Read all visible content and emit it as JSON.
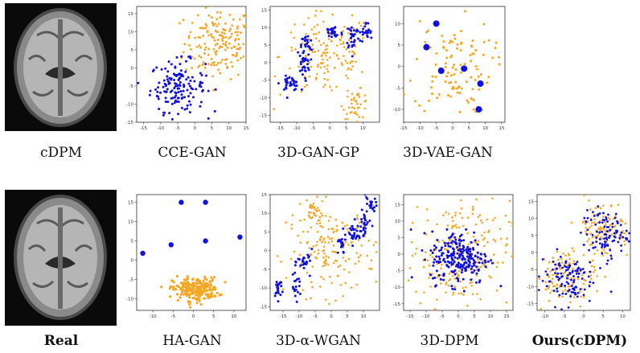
{
  "figure": {
    "captions": {
      "top": [
        "cDPM",
        "CCE-GAN",
        "3D-GAN-GP",
        "3D-VAE-GAN"
      ],
      "bottom": [
        "Real",
        "HA-GAN",
        "3D-α-WGAN",
        "3D-DPM",
        "Ours(cDPM)"
      ]
    },
    "colors": {
      "real": "#f5a623",
      "generated": "#1010e0"
    },
    "images": {
      "top_brain": "axial MRI brain slice",
      "bottom_brain": "axial MRI brain slice"
    }
  },
  "chart_data": [
    {
      "type": "scatter",
      "name": "CCE-GAN",
      "xlim": [
        -17,
        15
      ],
      "ylim": [
        -15,
        17
      ],
      "xticks": [
        -15,
        -10,
        -5,
        0,
        5,
        10,
        15
      ],
      "yticks": [
        -15,
        -10,
        -5,
        0,
        5,
        10,
        15
      ],
      "clusters": [
        {
          "color": "orange",
          "cx": 7,
          "cy": 7,
          "sx": 5,
          "sy": 5,
          "n": 170,
          "r": 1.4
        },
        {
          "color": "blue",
          "cx": -5,
          "cy": -5,
          "sx": 4,
          "sy": 3.5,
          "n": 150,
          "r": 1.5
        }
      ]
    },
    {
      "type": "scatter",
      "name": "3D-GAN-GP",
      "xlim": [
        -18,
        15
      ],
      "ylim": [
        -17,
        16
      ],
      "xticks": [
        -15,
        -10,
        -5,
        0,
        5,
        10
      ],
      "yticks": [
        -15,
        -10,
        -5,
        0,
        5,
        10,
        15
      ],
      "clusters": [
        {
          "color": "orange",
          "cx": -1,
          "cy": 2,
          "sx": 7,
          "sy": 6,
          "n": 160,
          "r": 1.3
        },
        {
          "color": "orange",
          "cx": 8,
          "cy": -12,
          "sx": 2,
          "sy": 2,
          "n": 40,
          "r": 1.3
        },
        {
          "color": "blue",
          "cx": -12,
          "cy": -6,
          "sx": 1.5,
          "sy": 1,
          "n": 35,
          "r": 1.5
        },
        {
          "color": "blue",
          "cx": -8,
          "cy": 0,
          "sx": 1,
          "sy": 2,
          "n": 30,
          "r": 1.5
        },
        {
          "color": "blue",
          "cx": -7,
          "cy": 5,
          "sx": 0.8,
          "sy": 1.5,
          "n": 20,
          "r": 1.5
        },
        {
          "color": "blue",
          "cx": 1,
          "cy": 8.5,
          "sx": 1.5,
          "sy": 1.2,
          "n": 30,
          "r": 1.5
        },
        {
          "color": "blue",
          "cx": 7,
          "cy": 7.5,
          "sx": 1,
          "sy": 2,
          "n": 30,
          "r": 1.5
        },
        {
          "color": "blue",
          "cx": 11,
          "cy": 8.5,
          "sx": 1,
          "sy": 1.5,
          "n": 25,
          "r": 1.5
        }
      ]
    },
    {
      "type": "scatter",
      "name": "3D-VAE-GAN",
      "xlim": [
        -15,
        16
      ],
      "ylim": [
        -13,
        14
      ],
      "xticks": [
        -15,
        -10,
        -5,
        0,
        5,
        10,
        15
      ],
      "yticks": [
        -10,
        -5,
        0,
        5,
        10
      ],
      "clusters": [
        {
          "color": "orange",
          "cx": 0,
          "cy": 0,
          "sx": 6,
          "sy": 5.5,
          "n": 110,
          "r": 1.5
        }
      ],
      "points_blue": [
        [
          -5,
          10
        ],
        [
          -8,
          4.5
        ],
        [
          -3.5,
          -1
        ],
        [
          3.5,
          -0.5
        ],
        [
          8.5,
          -4
        ],
        [
          8,
          -10
        ]
      ],
      "blue_r": 4
    },
    {
      "type": "scatter",
      "name": "HA-GAN",
      "xlim": [
        -14,
        13
      ],
      "ylim": [
        -13,
        17
      ],
      "xticks": [
        -10,
        -5,
        0,
        5,
        10
      ],
      "yticks": [
        -10,
        -5,
        0,
        5,
        10,
        15
      ],
      "clusters": [
        {
          "color": "orange",
          "cx": 0.5,
          "cy": -7.5,
          "sx": 2.8,
          "sy": 1.5,
          "n": 230,
          "r": 1.6
        }
      ],
      "points_blue": [
        [
          -3,
          15
        ],
        [
          3,
          15
        ],
        [
          -5.5,
          4
        ],
        [
          3,
          5
        ],
        [
          11.5,
          6
        ],
        [
          -12.5,
          1.8
        ]
      ],
      "blue_r": 3.2
    },
    {
      "type": "scatter",
      "name": "3D-α-WGAN",
      "xlim": [
        -19,
        15
      ],
      "ylim": [
        -16,
        15
      ],
      "xticks": [
        -15,
        -10,
        -5,
        0,
        5,
        10
      ],
      "yticks": [
        -15,
        -10,
        -5,
        0,
        5,
        10,
        15
      ],
      "clusters": [
        {
          "color": "orange",
          "cx": 0,
          "cy": 0,
          "sx": 7,
          "sy": 6,
          "n": 170,
          "r": 1.3
        },
        {
          "color": "orange",
          "cx": -5.5,
          "cy": 10.5,
          "sx": 1,
          "sy": 1.5,
          "n": 25,
          "r": 1.3
        },
        {
          "color": "blue",
          "cx": -16.5,
          "cy": -10,
          "sx": 0.8,
          "sy": 1.5,
          "n": 20,
          "r": 1.5
        },
        {
          "color": "blue",
          "cx": -11,
          "cy": -10,
          "sx": 0.8,
          "sy": 1.5,
          "n": 20,
          "r": 1.5
        },
        {
          "color": "blue",
          "cx": -8,
          "cy": -3,
          "sx": 1.2,
          "sy": 1.5,
          "n": 25,
          "r": 1.5
        },
        {
          "color": "blue",
          "cx": 3,
          "cy": 1.5,
          "sx": 0.8,
          "sy": 1.5,
          "n": 20,
          "r": 1.5
        },
        {
          "color": "blue",
          "cx": 7,
          "cy": 4.5,
          "sx": 1,
          "sy": 1.5,
          "n": 25,
          "r": 1.5
        },
        {
          "color": "blue",
          "cx": 10.5,
          "cy": 7,
          "sx": 1,
          "sy": 2,
          "n": 25,
          "r": 1.5
        },
        {
          "color": "blue",
          "cx": 12,
          "cy": 12,
          "sx": 1,
          "sy": 1.2,
          "n": 20,
          "r": 1.5
        }
      ]
    },
    {
      "type": "scatter",
      "name": "3D-DPM",
      "xlim": [
        -17,
        17
      ],
      "ylim": [
        -17,
        18
      ],
      "xticks": [
        -15,
        -10,
        -5,
        0,
        5,
        10,
        15
      ],
      "yticks": [
        -15,
        -10,
        -5,
        0,
        5,
        10,
        15
      ],
      "clusters": [
        {
          "color": "orange",
          "cx": 0,
          "cy": 0,
          "sx": 8,
          "sy": 8,
          "n": 220,
          "r": 1.3
        },
        {
          "color": "blue",
          "cx": 0.5,
          "cy": -1,
          "sx": 4.5,
          "sy": 4,
          "n": 230,
          "r": 1.5
        }
      ]
    },
    {
      "type": "scatter",
      "name": "Ours(cDPM)",
      "xlim": [
        -12,
        12
      ],
      "ylim": [
        -17,
        17
      ],
      "xticks": [
        -10,
        -5,
        0,
        5,
        10
      ],
      "yticks": [
        -15,
        -10,
        -5,
        0,
        5,
        10,
        15
      ],
      "clusters": [
        {
          "color": "orange",
          "cx": 5,
          "cy": 7,
          "sx": 3.5,
          "sy": 4.5,
          "n": 110,
          "r": 1.3
        },
        {
          "color": "orange",
          "cx": -5,
          "cy": -7,
          "sx": 4,
          "sy": 4,
          "n": 120,
          "r": 1.3
        },
        {
          "color": "blue",
          "cx": 5.5,
          "cy": 5.5,
          "sx": 3,
          "sy": 3.5,
          "n": 100,
          "r": 1.4
        },
        {
          "color": "blue",
          "cx": -4.5,
          "cy": -7.5,
          "sx": 3.5,
          "sy": 4,
          "n": 110,
          "r": 1.4
        }
      ]
    }
  ]
}
